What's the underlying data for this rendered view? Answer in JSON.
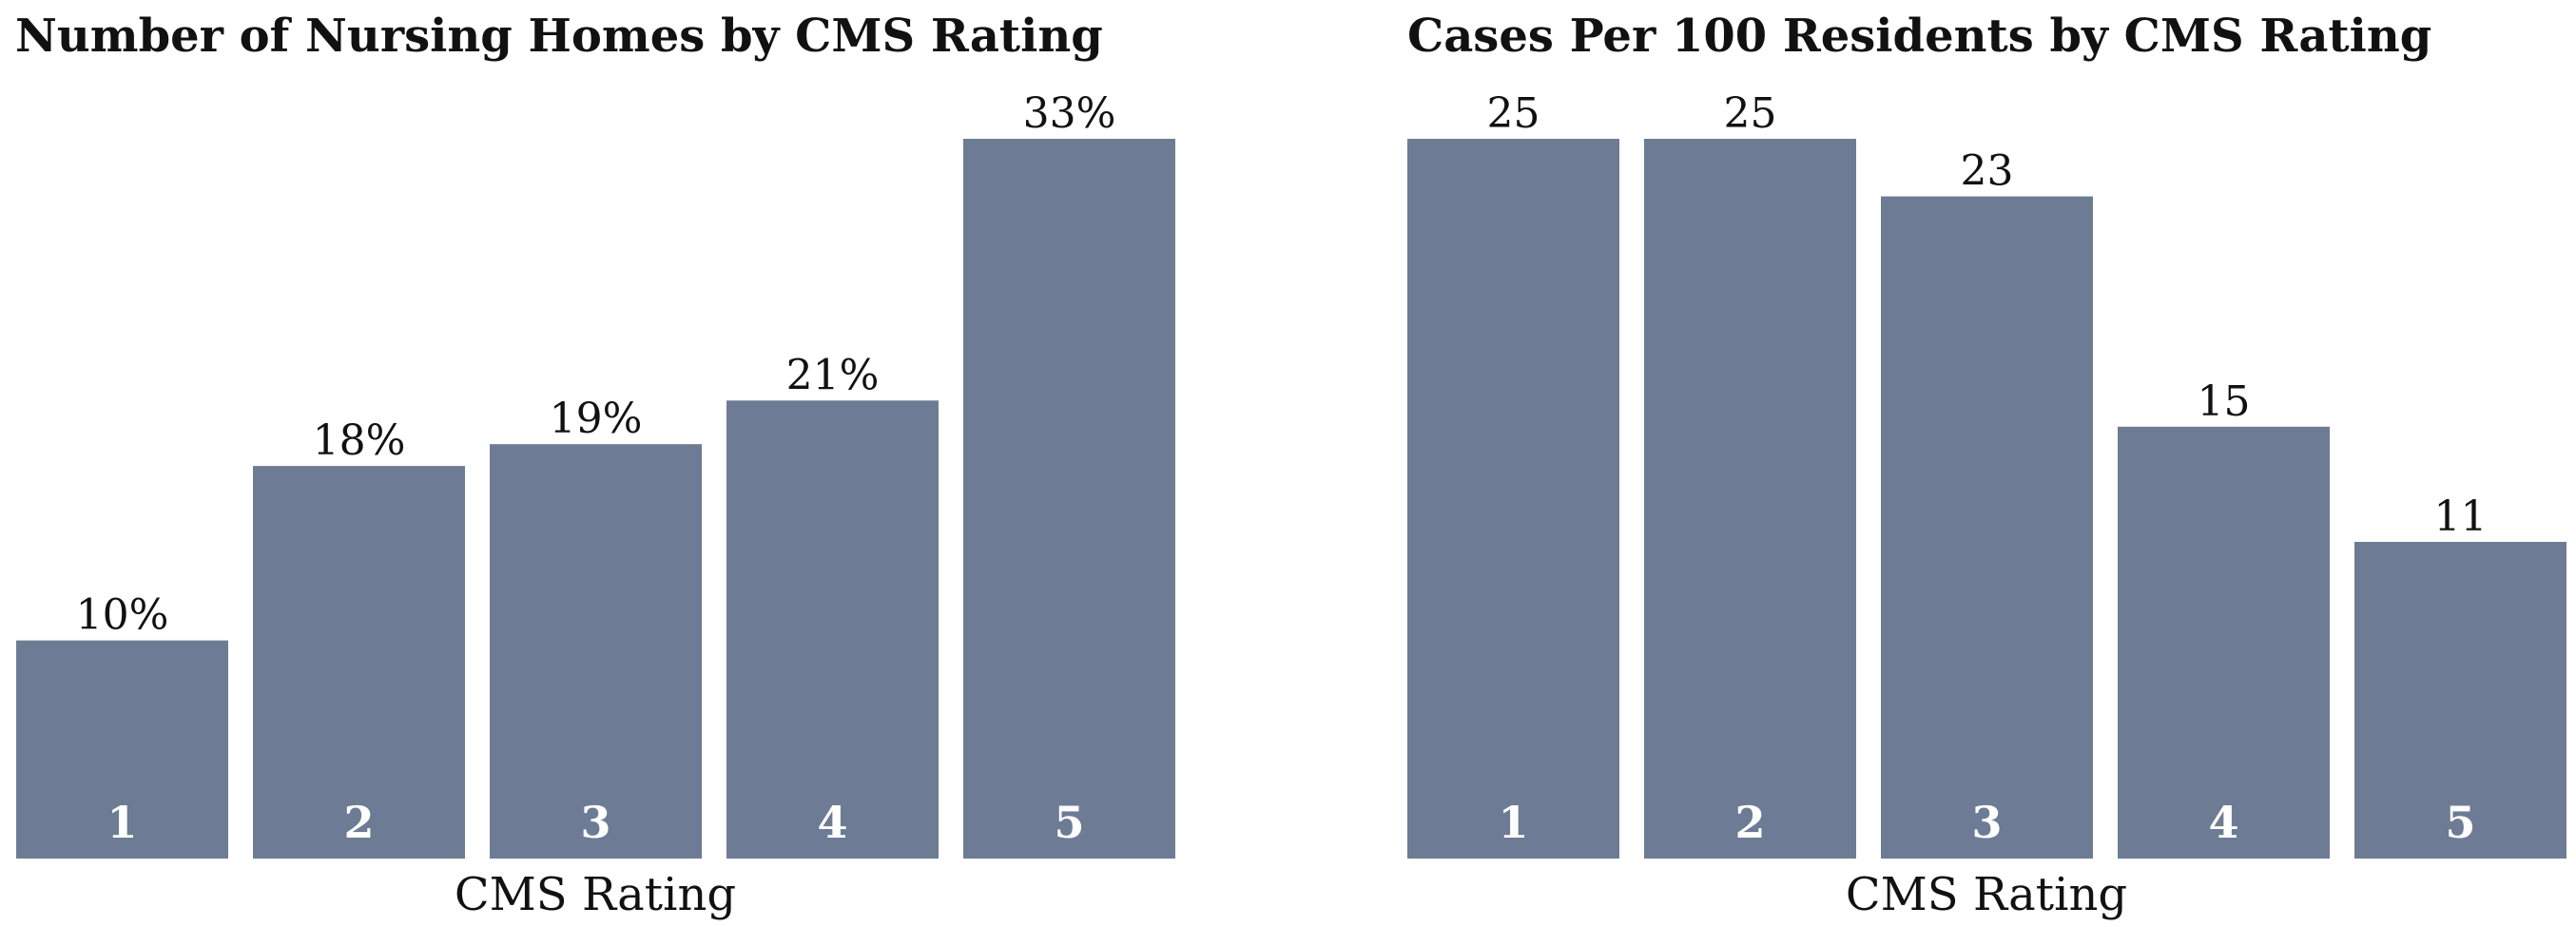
{
  "bar_color": "#6d7c94",
  "chart_data": [
    {
      "type": "bar",
      "title": "Number of Nursing Homes by CMS Rating",
      "xlabel": "CMS Rating",
      "ylabel": "",
      "categories": [
        "1",
        "2",
        "3",
        "4",
        "5"
      ],
      "values": [
        10,
        18,
        19,
        21,
        33
      ],
      "value_labels": [
        "10%",
        "18%",
        "19%",
        "21%",
        "33%"
      ],
      "ylim": [
        0,
        33
      ],
      "grid": false
    },
    {
      "type": "bar",
      "title": "Cases Per 100 Residents by CMS Rating",
      "xlabel": "CMS Rating",
      "ylabel": "",
      "categories": [
        "1",
        "2",
        "3",
        "4",
        "5"
      ],
      "values": [
        25,
        25,
        23,
        15,
        11
      ],
      "value_labels": [
        "25",
        "25",
        "23",
        "15",
        "11"
      ],
      "ylim": [
        0,
        25
      ],
      "grid": false
    }
  ]
}
